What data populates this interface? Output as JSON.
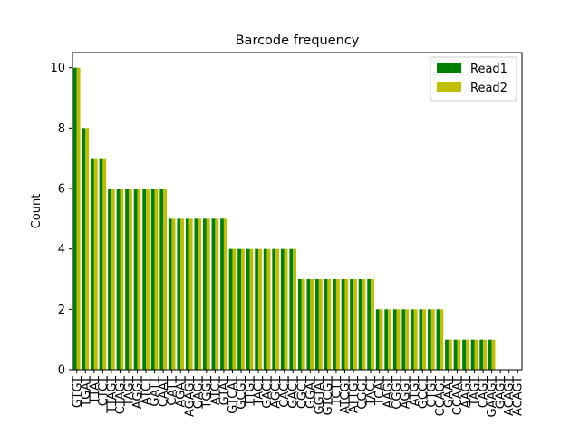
{
  "chart_data": {
    "type": "bar",
    "title": "Barcode frequency",
    "xlabel": "",
    "ylabel": "Count",
    "ylim": [
      0,
      10.5
    ],
    "yticks": [
      0,
      2,
      4,
      6,
      8,
      10
    ],
    "grid": false,
    "legend_position": "top-right",
    "categories": [
      "GTGT",
      "TGAT",
      "TTAT",
      "CTCT",
      "TTAGT",
      "CTAGT",
      "TAGT",
      "AGGT",
      "ATCT",
      "GATT",
      "CAAT",
      "CATT",
      "AGAT",
      "AGAGT",
      "GAGT",
      "TGGT",
      "ATCT",
      "GTAT",
      "GTCAT",
      "GCGT",
      "TTGT",
      "TACT",
      "GACT",
      "AGCT",
      "CACT",
      "GACT",
      "CGCT",
      "GGAT",
      "GGTAT",
      "GTCGT",
      "TCTT",
      "ATCGT",
      "ATTGT",
      "CGGT",
      "TACT",
      "TCAT",
      "AAGT",
      "CGGT",
      "AGGT",
      "ATGT",
      "GCCT",
      "CTGT",
      "CCAGT",
      "GAAT",
      "CCAAT",
      "AAGT",
      "TAGT",
      "CAGT",
      "GAAGT",
      "GAGT",
      "ACAGT",
      "ACAGT"
    ],
    "series": [
      {
        "name": "Read1",
        "color": "#008000",
        "values": [
          10,
          8,
          7,
          7,
          6,
          6,
          6,
          6,
          6,
          6,
          6,
          5,
          5,
          5,
          5,
          5,
          5,
          5,
          4,
          4,
          4,
          4,
          4,
          4,
          4,
          4,
          3,
          3,
          3,
          3,
          3,
          3,
          3,
          3,
          3,
          2,
          2,
          2,
          2,
          2,
          2,
          2,
          2,
          1,
          1,
          1,
          1,
          1,
          1,
          0,
          0,
          0
        ]
      },
      {
        "name": "Read2",
        "color": "#bfbf00",
        "values": [
          10,
          8,
          7,
          7,
          6,
          6,
          6,
          6,
          6,
          6,
          6,
          5,
          5,
          5,
          5,
          5,
          5,
          5,
          4,
          4,
          4,
          4,
          4,
          4,
          4,
          4,
          3,
          3,
          3,
          3,
          3,
          3,
          3,
          3,
          3,
          2,
          2,
          2,
          2,
          2,
          2,
          2,
          2,
          1,
          1,
          1,
          1,
          1,
          1,
          0,
          0,
          0
        ]
      }
    ]
  }
}
